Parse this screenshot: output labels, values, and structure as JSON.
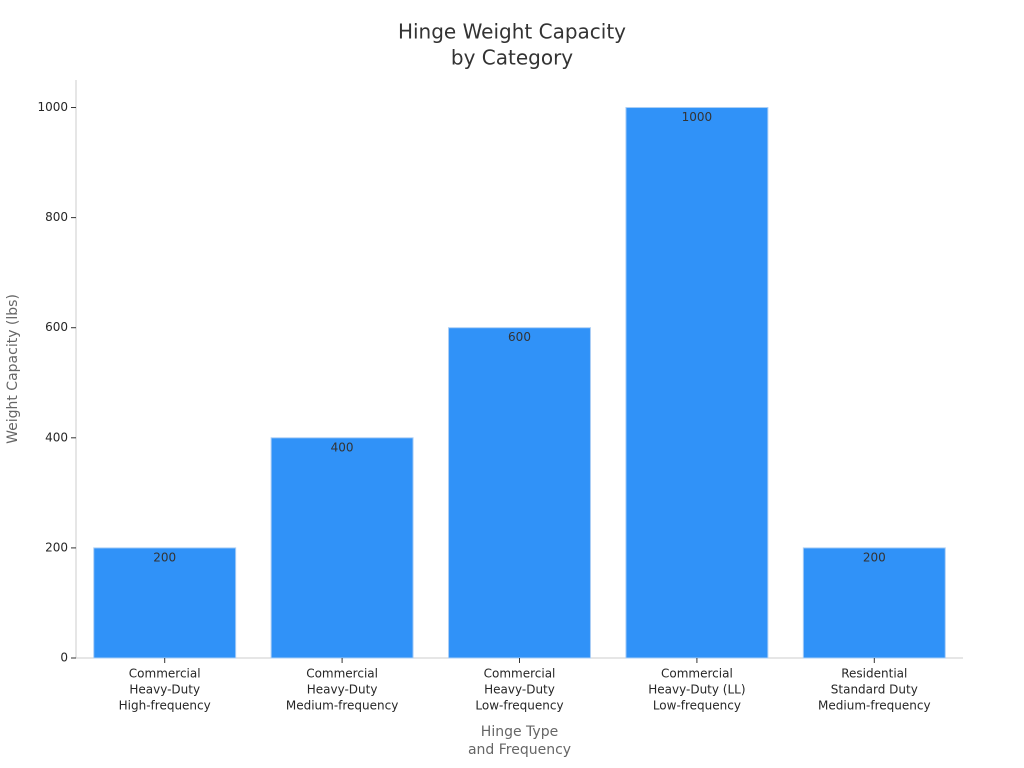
{
  "chart_data": {
    "type": "bar",
    "title": [
      "Hinge Weight Capacity",
      "by Category"
    ],
    "x_label": [
      "Hinge Type",
      "and Frequency"
    ],
    "y_label": "Weight Capacity (lbs)",
    "categories": [
      [
        "Commercial",
        "Heavy-Duty",
        "High-frequency"
      ],
      [
        "Commercial",
        "Heavy-Duty",
        "Medium-frequency"
      ],
      [
        "Commercial",
        "Heavy-Duty",
        "Low-frequency"
      ],
      [
        "Commercial",
        "Heavy-Duty (LL)",
        "Low-frequency"
      ],
      [
        "Residential",
        "Standard Duty",
        "Medium-frequency"
      ]
    ],
    "values": [
      200,
      400,
      600,
      1000,
      200
    ],
    "color": "#3092f8",
    "ylim": [
      0,
      1050
    ],
    "yticks": [
      0,
      200,
      400,
      600,
      800,
      1000
    ],
    "grid": false
  }
}
